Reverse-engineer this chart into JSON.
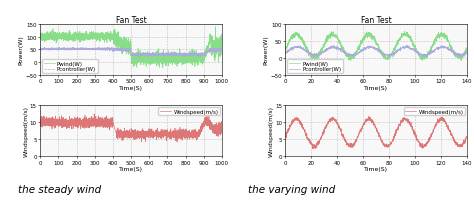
{
  "title": "Fan Test",
  "left_top": {
    "xlabel": "Time(S)",
    "ylabel": "Power(W)",
    "xlim": [
      0,
      1000
    ],
    "ylim": [
      -50,
      150
    ],
    "yticks": [
      -50,
      0,
      50,
      100,
      150
    ],
    "xticks": [
      0,
      100,
      200,
      300,
      400,
      500,
      600,
      700,
      800,
      900,
      1000
    ],
    "pwind_color": "#88dd88",
    "pcontroller_color": "#aaaadd",
    "legend": [
      "Pwind(W)",
      "Pcontroller(W)"
    ]
  },
  "left_bottom": {
    "xlabel": "Time(S)",
    "ylabel": "Windspeed(m/s)",
    "xlim": [
      0,
      1000
    ],
    "ylim": [
      0,
      15
    ],
    "yticks": [
      0,
      5,
      10,
      15
    ],
    "xticks": [
      0,
      100,
      200,
      300,
      400,
      500,
      600,
      700,
      800,
      900,
      1000
    ],
    "wind_color": "#dd7777",
    "legend": [
      "Windspeed(m/s)"
    ]
  },
  "right_top": {
    "xlabel": "Time(S)",
    "ylabel": "Power(W)",
    "xlim": [
      0,
      140
    ],
    "ylim": [
      -50,
      100
    ],
    "yticks": [
      -50,
      0,
      50,
      100
    ],
    "xticks": [
      0,
      20,
      40,
      60,
      80,
      100,
      120,
      140
    ],
    "pwind_color": "#88dd88",
    "pcontroller_color": "#aaaadd",
    "legend": [
      "Pwind(W)",
      "Pcontroller(W)"
    ]
  },
  "right_bottom": {
    "xlabel": "Time(S)",
    "ylabel": "Windspeed(m/s)",
    "xlim": [
      0,
      140
    ],
    "ylim": [
      0,
      15
    ],
    "yticks": [
      0,
      5,
      10,
      15
    ],
    "xticks": [
      0,
      20,
      40,
      60,
      80,
      100,
      120,
      140
    ],
    "wind_color": "#dd7777",
    "legend": [
      "Windspeed(m/s)"
    ]
  },
  "caption_left": "the steady wind",
  "caption_right": "the varying wind",
  "caption_fontsize": 7.5,
  "grid_color": "#bbbbbb",
  "background_color": "#f8f8f8",
  "title_fontsize": 5.5,
  "label_fontsize": 4.5,
  "tick_fontsize": 4.0,
  "legend_fontsize": 4.0
}
